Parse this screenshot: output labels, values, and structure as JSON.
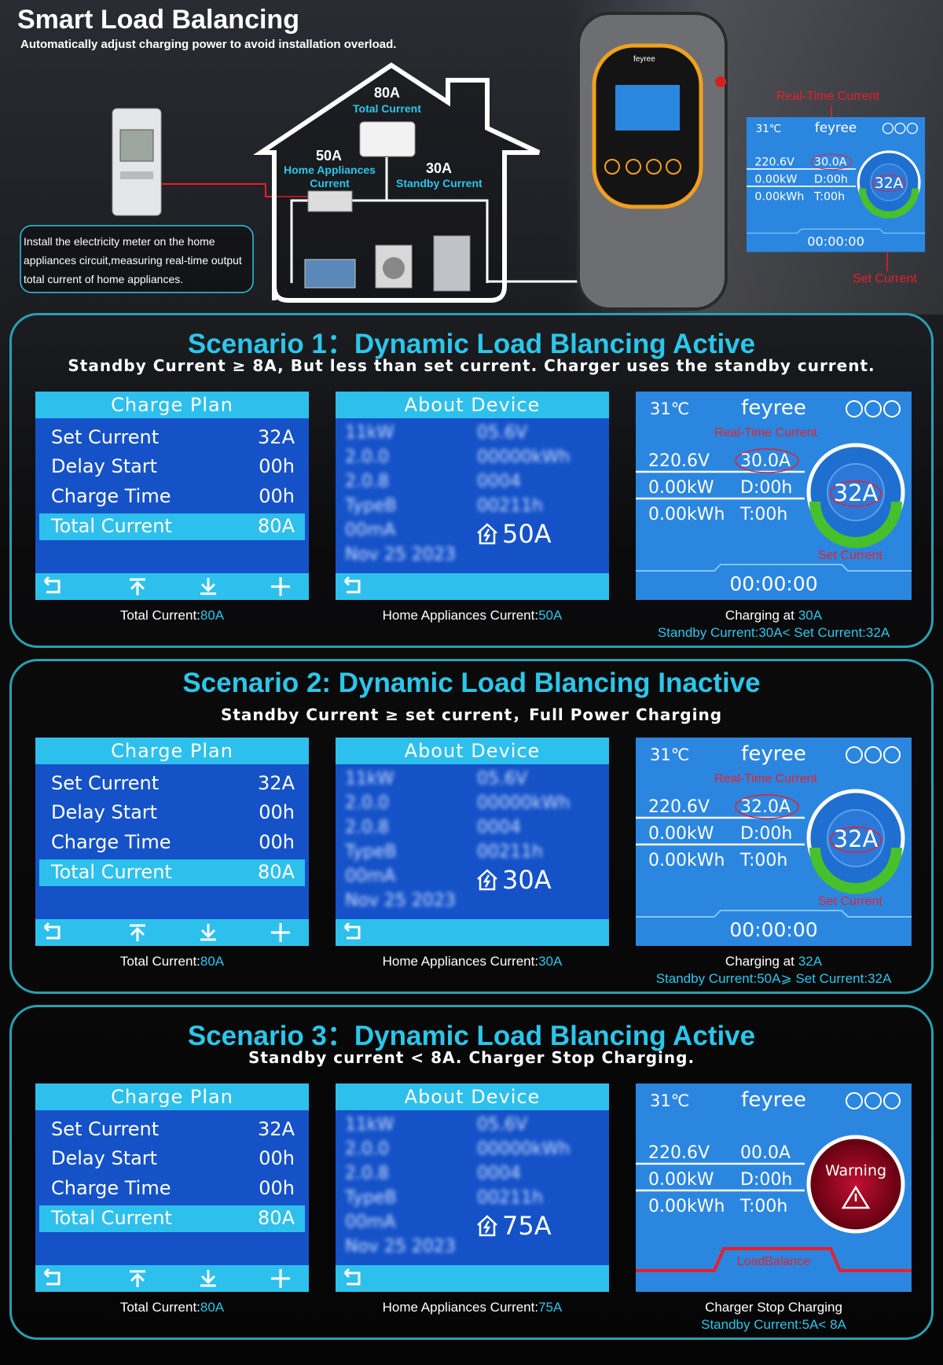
{
  "header": {
    "title": "Smart Load Balancing",
    "subtitle": "Automatically adjust charging power to avoid installation overload."
  },
  "diagram": {
    "total": {
      "value": "80A",
      "label": "Total Current"
    },
    "home": {
      "value": "50A",
      "label": "Home Appliances Current"
    },
    "standby": {
      "value": "30A",
      "label": "Standby Current"
    },
    "note": "Install the electricity meter on the home appliances circuit,measuring real-time output total current of home appliances.",
    "charger_brand": "feyree",
    "screen": {
      "temp": "31℃",
      "brand": "feyree",
      "realtime_label": "Real-Time Current",
      "voltage": "220.6V",
      "current": "30.0A",
      "power": "0.00kW",
      "delay": "D:00h",
      "energy": "0.00kWh",
      "time": "T:00h",
      "center": "32A",
      "set_label": "Set Current",
      "footer": "00:00:00"
    }
  },
  "scenarios": [
    {
      "title": "Scenario 1：Dynamic Load Blancing Active",
      "subtitle": "Standby Current ≥ 8A, But less than set current. Charger uses the standby current.",
      "charge_plan": {
        "title": "Charge Plan",
        "rows": [
          [
            "Set Current",
            "32A"
          ],
          [
            "Delay Start",
            "00h"
          ],
          [
            "Charge Time",
            "00h"
          ],
          [
            "Total Current",
            "80A"
          ]
        ]
      },
      "about": {
        "title": "About Device",
        "blurred": [
          "11kW",
          "05.6V",
          "2.0.0",
          "00000kWh",
          "2.0.8",
          "0004",
          "TypeB",
          "00211h",
          "00mA",
          "Nov 25 2023"
        ],
        "value": "50A"
      },
      "display": {
        "temp": "31℃",
        "brand": "feyree",
        "realtime_label": "Real-Time Current",
        "voltage": "220.6V",
        "current": "30.0A",
        "power": "0.00kW",
        "delay": "D:00h",
        "energy": "0.00kWh",
        "time": "T:00h",
        "center": "32A",
        "set_label": "Set Current",
        "footer": "00:00:00"
      },
      "captions": {
        "plan": {
          "label": "Total Current:",
          "value": "80A"
        },
        "about": {
          "label": "Home Appliances Current:",
          "value": "50A"
        },
        "display": {
          "main": "Charging at",
          "highlight": "30A",
          "note": "Standby Current:30A< Set Current:32A"
        }
      }
    },
    {
      "title": "Scenario 2: Dynamic Load Blancing Inactive",
      "subtitle": "Standby Current ≥ set current，Full Power Charging",
      "charge_plan": {
        "title": "Charge Plan",
        "rows": [
          [
            "Set Current",
            "32A"
          ],
          [
            "Delay Start",
            "00h"
          ],
          [
            "Charge Time",
            "00h"
          ],
          [
            "Total Current",
            "80A"
          ]
        ]
      },
      "about": {
        "title": "About Device",
        "blurred": [
          "11kW",
          "05.6V",
          "2.0.0",
          "00000kWh",
          "2.0.8",
          "0004",
          "TypeB",
          "00211h",
          "00mA",
          "Nov 25 2023"
        ],
        "value": "30A"
      },
      "display": {
        "temp": "31℃",
        "brand": "feyree",
        "realtime_label": "Real-Time Current",
        "voltage": "220.6V",
        "current": "32.0A",
        "power": "0.00kW",
        "delay": "D:00h",
        "energy": "0.00kWh",
        "time": "T:00h",
        "center": "32A",
        "set_label": "Set Current",
        "footer": "00:00:00"
      },
      "captions": {
        "plan": {
          "label": "Total Current:",
          "value": "80A"
        },
        "about": {
          "label": "Home Appliances Current:",
          "value": "30A"
        },
        "display": {
          "main": "Charging at",
          "highlight": "32A",
          "note": "Standby Current:50A⩾ Set Current:32A"
        }
      }
    },
    {
      "title": "Scenario 3：Dynamic Load Blancing Active",
      "subtitle": "Standby current < 8A. Charger Stop Charging.",
      "charge_plan": {
        "title": "Charge Plan",
        "rows": [
          [
            "Set Current",
            "32A"
          ],
          [
            "Delay Start",
            "00h"
          ],
          [
            "Charge Time",
            "00h"
          ],
          [
            "Total Current",
            "80A"
          ]
        ]
      },
      "about": {
        "title": "About Device",
        "blurred": [
          "11kW",
          "05.6V",
          "2.0.0",
          "00000kWh",
          "2.0.8",
          "0004",
          "TypeB",
          "00211h",
          "00mA",
          "Nov 25 2023"
        ],
        "value": "75A"
      },
      "display": {
        "temp": "31℃",
        "brand": "feyree",
        "voltage": "220.6V",
        "current": "00.0A",
        "power": "0.00kW",
        "delay": "D:00h",
        "energy": "0.00kWh",
        "time": "T:00h",
        "center": "Warning",
        "footer": "LoadBalance"
      },
      "captions": {
        "plan": {
          "label": "Total Current:",
          "value": "80A"
        },
        "about": {
          "label": "Home Appliances Current:",
          "value": "75A"
        },
        "display": {
          "main": "Charger Stop Charging",
          "note": "Standby Current:5A< 8A"
        }
      }
    }
  ]
}
